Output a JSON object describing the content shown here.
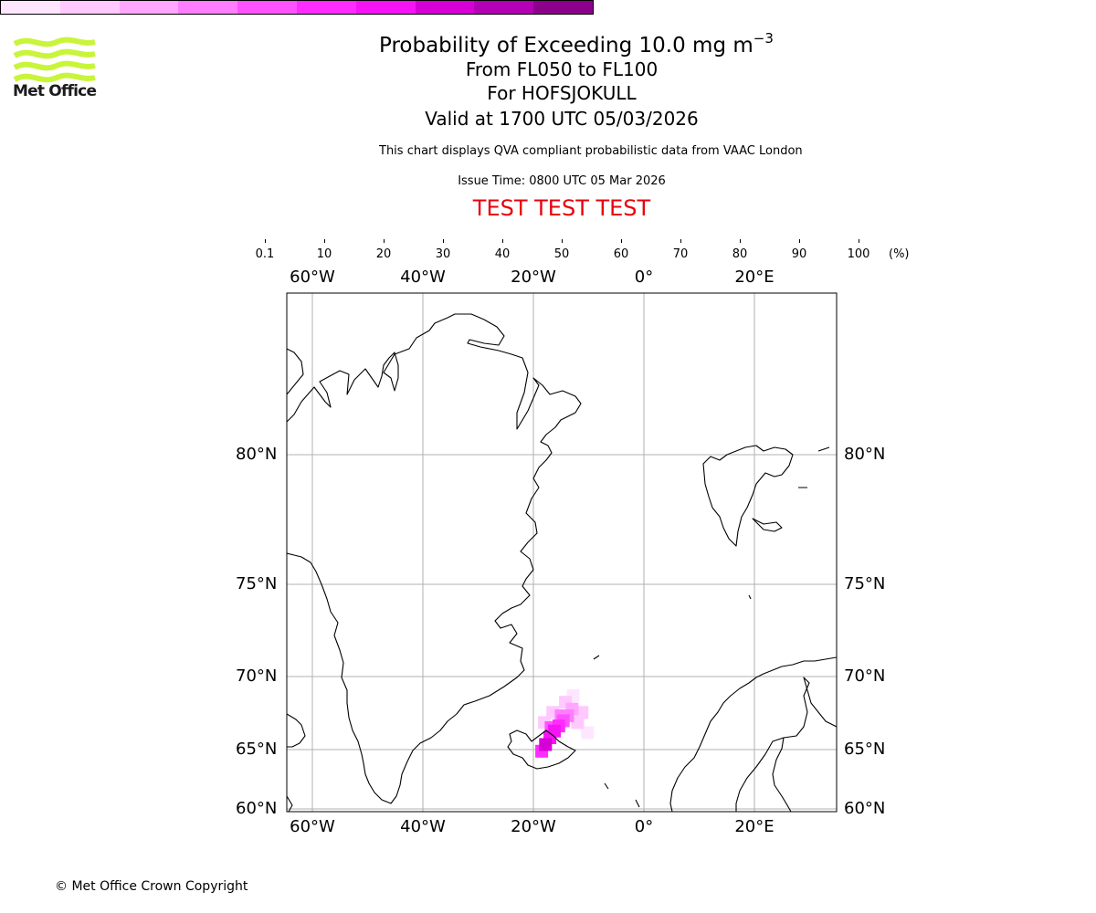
{
  "logo": {
    "text": "Met Office",
    "color": "#c8f53a"
  },
  "title": {
    "main_text": "Probability of Exceeding 10.0 mg m",
    "main_superscript": "−3",
    "line2": "From FL050 to FL100",
    "line3": "For HOFSJOKULL",
    "line4": "Valid at 1700 UTC 05/03/2026"
  },
  "description": "This chart displays QVA compliant probabilistic data from VAAC London",
  "issue_time": "Issue Time: 0800 UTC 05 Mar 2026",
  "banner": {
    "text": "TEST TEST TEST",
    "color": "#e8000b"
  },
  "colorbar": {
    "ticks": [
      "0.1",
      "10",
      "20",
      "30",
      "40",
      "50",
      "60",
      "70",
      "80",
      "90",
      "100"
    ],
    "unit": "(%)",
    "colors": [
      "#ffe6ff",
      "#ffc8ff",
      "#ffa6ff",
      "#ff7eff",
      "#ff52ff",
      "#ff2cff",
      "#f614f6",
      "#d600d6",
      "#b400b4",
      "#8c008c",
      "#640064"
    ]
  },
  "map": {
    "lon_labels": [
      "60°W",
      "40°W",
      "20°W",
      "0°",
      "20°E"
    ],
    "lat_labels": [
      "80°N",
      "75°N",
      "70°N",
      "65°N",
      "60°N"
    ],
    "plume_region": "Iceland (Hofsjokull)"
  },
  "chart_data": {
    "type": "heatmap",
    "title": "Probability of Exceeding 10.0 mg m−3",
    "variable": "probability (%)",
    "color_range": [
      0.1,
      100
    ],
    "lon_range": [
      -65,
      35
    ],
    "lat_range": [
      60,
      85
    ],
    "cells": [
      {
        "lon": -18.5,
        "lat": 64.9,
        "p": 55
      },
      {
        "lon": -17.8,
        "lat": 65.3,
        "p": 70
      },
      {
        "lon": -17.0,
        "lat": 65.7,
        "p": 65
      },
      {
        "lon": -16.2,
        "lat": 66.1,
        "p": 60
      },
      {
        "lon": -15.4,
        "lat": 66.4,
        "p": 55
      },
      {
        "lon": -14.6,
        "lat": 66.7,
        "p": 45
      },
      {
        "lon": -13.8,
        "lat": 67.0,
        "p": 35
      },
      {
        "lon": -16.8,
        "lat": 66.3,
        "p": 40
      },
      {
        "lon": -15.0,
        "lat": 67.0,
        "p": 30
      },
      {
        "lon": -13.0,
        "lat": 67.4,
        "p": 20
      },
      {
        "lon": -12.0,
        "lat": 66.6,
        "p": 15
      },
      {
        "lon": -11.2,
        "lat": 67.2,
        "p": 12
      },
      {
        "lon": -16.5,
        "lat": 67.2,
        "p": 15
      },
      {
        "lon": -14.2,
        "lat": 67.8,
        "p": 12
      },
      {
        "lon": -12.8,
        "lat": 68.2,
        "p": 8
      },
      {
        "lon": -10.2,
        "lat": 66.0,
        "p": 6
      },
      {
        "lon": -18.0,
        "lat": 66.6,
        "p": 10
      }
    ]
  },
  "copyright": "© Met Office Crown Copyright"
}
